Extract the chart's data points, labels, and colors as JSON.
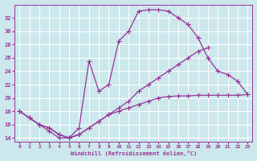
{
  "xlabel": "Windchill (Refroidissement éolien,°C)",
  "bg_color": "#cce8ec",
  "line_color": "#993399",
  "grid_color": "#ffffff",
  "ylim": [
    13.5,
    34
  ],
  "xlim": [
    -0.5,
    23.5
  ],
  "ytick_vals": [
    14,
    16,
    18,
    20,
    22,
    24,
    26,
    28,
    30,
    32
  ],
  "xtick_vals": [
    0,
    1,
    2,
    3,
    4,
    5,
    6,
    7,
    8,
    9,
    10,
    11,
    12,
    13,
    14,
    15,
    16,
    17,
    18,
    19,
    20,
    21,
    22,
    23
  ],
  "curve1_x": [
    0,
    1,
    2,
    3,
    4,
    5,
    6,
    7,
    8,
    9,
    10,
    11,
    12,
    13,
    14,
    15,
    16,
    17,
    18
  ],
  "curve1_y": [
    18,
    17,
    16,
    15,
    14,
    14,
    15.5,
    25.5,
    21,
    22,
    28.5,
    30,
    33,
    33.2,
    33.2,
    33,
    32,
    31,
    29
  ],
  "curve2_x": [
    0,
    1,
    2,
    3,
    4,
    5,
    6,
    7,
    8,
    9,
    10,
    11,
    12,
    13,
    14,
    15,
    16,
    17,
    18,
    19
  ],
  "curve2_y": [
    18,
    17,
    16,
    15.5,
    14.5,
    14,
    14.5,
    15.5,
    16.5,
    17.5,
    18.5,
    19.5,
    21,
    22,
    23,
    24,
    25,
    26,
    27,
    27.5
  ],
  "curve3_x": [
    18,
    19,
    20,
    21,
    22,
    23
  ],
  "curve3_y": [
    29,
    26,
    24,
    23.5,
    22.5,
    20.5
  ],
  "curve4_x": [
    0,
    1,
    2,
    3,
    4,
    5,
    6,
    7,
    8,
    9,
    10,
    11,
    12,
    13,
    14,
    15,
    16,
    17,
    18,
    19,
    20,
    21,
    22,
    23
  ],
  "curve4_y": [
    18,
    17,
    16,
    15.5,
    14.5,
    14,
    14.5,
    15.5,
    16.5,
    17.5,
    18,
    18.5,
    19,
    19.5,
    20,
    20.2,
    20.3,
    20.3,
    20.4,
    20.4,
    20.4,
    20.4,
    20.4,
    20.5
  ]
}
